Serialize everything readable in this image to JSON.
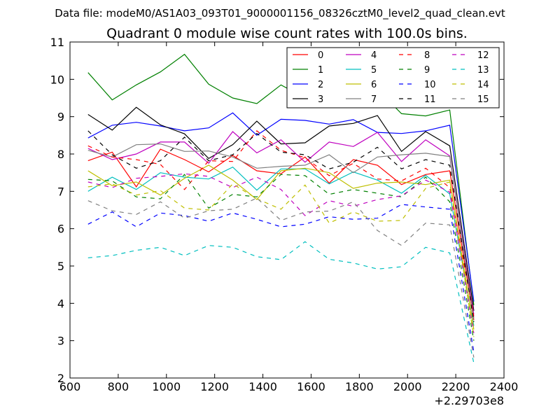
{
  "chart_data": {
    "type": "line",
    "suptitle": "Data file: modeM0/AS1A03_093T01_9000001156_08326cztM0_level2_quad_clean.evt",
    "title": "Quadrant 0 module wise count rates with 100.0s bins.",
    "xlabel": "",
    "ylabel": "",
    "x_offset_label": "+2.29703e8",
    "xlim": [
      600,
      2400
    ],
    "ylim": [
      2,
      11
    ],
    "xticks": [
      600,
      800,
      1000,
      1200,
      1400,
      1600,
      1800,
      2000,
      2200,
      2400
    ],
    "yticks": [
      2,
      3,
      4,
      5,
      6,
      7,
      8,
      9,
      10,
      11
    ],
    "grid": false,
    "legend_position": "top-right",
    "x": [
      675,
      775,
      875,
      975,
      1075,
      1175,
      1275,
      1375,
      1475,
      1575,
      1675,
      1775,
      1875,
      1975,
      2075,
      2175,
      2275
    ],
    "series": [
      {
        "name": "0",
        "color": "#ff0000",
        "dash": "solid",
        "values": [
          7.82,
          8.05,
          7.12,
          8.13,
          7.85,
          7.52,
          7.96,
          7.55,
          7.47,
          7.92,
          7.22,
          7.85,
          7.7,
          7.18,
          7.45,
          7.55,
          3.55
        ]
      },
      {
        "name": "1",
        "color": "#008000",
        "dash": "solid",
        "values": [
          10.18,
          9.45,
          9.85,
          10.2,
          10.67,
          9.87,
          9.5,
          9.35,
          9.85,
          9.5,
          9.27,
          9.7,
          9.73,
          9.08,
          9.02,
          9.18,
          3.95
        ]
      },
      {
        "name": "2",
        "color": "#0000ff",
        "dash": "solid",
        "values": [
          8.43,
          8.77,
          8.85,
          8.75,
          8.62,
          8.7,
          9.1,
          8.5,
          8.93,
          8.9,
          8.8,
          8.92,
          8.58,
          8.55,
          8.62,
          8.77,
          4.05
        ]
      },
      {
        "name": "3",
        "color": "#000000",
        "dash": "solid",
        "values": [
          9.06,
          8.64,
          9.25,
          8.78,
          8.54,
          7.88,
          8.25,
          8.88,
          8.27,
          8.3,
          8.75,
          8.82,
          9.03,
          8.07,
          8.6,
          8.22,
          3.8
        ]
      },
      {
        "name": "4",
        "color": "#bf00bf",
        "dash": "solid",
        "values": [
          8.15,
          7.85,
          8.0,
          8.32,
          8.32,
          7.75,
          8.6,
          8.03,
          8.38,
          7.78,
          8.32,
          8.2,
          8.58,
          7.8,
          8.38,
          7.95,
          3.7
        ]
      },
      {
        "name": "5",
        "color": "#00bfbf",
        "dash": "solid",
        "values": [
          7.0,
          7.38,
          7.05,
          7.5,
          7.38,
          7.33,
          7.65,
          7.03,
          7.6,
          7.6,
          7.2,
          7.52,
          7.3,
          6.95,
          7.43,
          6.93,
          3.4
        ]
      },
      {
        "name": "6",
        "color": "#bfbf00",
        "dash": "solid",
        "values": [
          7.55,
          7.15,
          7.25,
          6.9,
          7.35,
          7.7,
          7.3,
          6.78,
          7.55,
          7.62,
          7.5,
          7.08,
          7.22,
          7.25,
          7.18,
          7.3,
          3.3
        ]
      },
      {
        "name": "7",
        "color": "#808080",
        "dash": "solid",
        "values": [
          8.1,
          7.92,
          8.25,
          8.27,
          8.07,
          8.08,
          7.92,
          7.62,
          7.67,
          7.7,
          7.98,
          7.5,
          7.92,
          7.98,
          8.02,
          7.93,
          3.6
        ]
      },
      {
        "name": "8",
        "color": "#ff0000",
        "dash": "dashed",
        "values": [
          8.22,
          7.92,
          7.85,
          7.72,
          7.05,
          7.82,
          7.8,
          8.62,
          8.1,
          7.9,
          7.42,
          7.75,
          7.33,
          7.28,
          7.62,
          7.1,
          3.65
        ]
      },
      {
        "name": "9",
        "color": "#008000",
        "dash": "dashed",
        "values": [
          7.32,
          7.28,
          6.85,
          6.8,
          7.45,
          6.55,
          6.92,
          6.85,
          7.45,
          7.42,
          6.92,
          7.05,
          6.95,
          6.85,
          7.38,
          6.72,
          3.0
        ]
      },
      {
        "name": "10",
        "color": "#0000ff",
        "dash": "dashed",
        "values": [
          6.12,
          6.45,
          6.05,
          6.42,
          6.35,
          6.2,
          6.42,
          6.25,
          6.05,
          6.12,
          6.32,
          6.25,
          6.28,
          6.65,
          6.58,
          6.52,
          2.7
        ]
      },
      {
        "name": "11",
        "color": "#000000",
        "dash": "dashed",
        "values": [
          8.62,
          7.98,
          7.62,
          7.82,
          8.45,
          7.82,
          7.98,
          8.55,
          8.05,
          7.98,
          7.6,
          7.78,
          8.18,
          7.6,
          7.85,
          7.7,
          3.5
        ]
      },
      {
        "name": "12",
        "color": "#bf00bf",
        "dash": "dashed",
        "values": [
          7.25,
          7.1,
          7.35,
          7.4,
          7.47,
          7.4,
          7.1,
          7.38,
          7.05,
          6.35,
          6.75,
          6.6,
          6.78,
          6.88,
          7.3,
          6.98,
          3.2
        ]
      },
      {
        "name": "13",
        "color": "#00bfbf",
        "dash": "dashed",
        "values": [
          5.22,
          5.28,
          5.42,
          5.5,
          5.28,
          5.55,
          5.5,
          5.25,
          5.17,
          5.65,
          5.18,
          5.08,
          4.92,
          4.98,
          5.5,
          5.35,
          2.4
        ]
      },
      {
        "name": "14",
        "color": "#bfbf00",
        "dash": "dashed",
        "values": [
          7.12,
          7.2,
          6.9,
          7.02,
          6.55,
          6.5,
          7.2,
          6.8,
          6.52,
          7.17,
          6.15,
          6.45,
          6.2,
          6.22,
          7.08,
          7.25,
          3.1
        ]
      },
      {
        "name": "15",
        "color": "#808080",
        "dash": "dashed",
        "values": [
          6.75,
          6.48,
          6.38,
          6.72,
          6.28,
          6.48,
          6.52,
          6.82,
          6.22,
          6.45,
          6.47,
          6.72,
          5.95,
          5.55,
          6.15,
          6.1,
          2.55
        ]
      }
    ]
  }
}
